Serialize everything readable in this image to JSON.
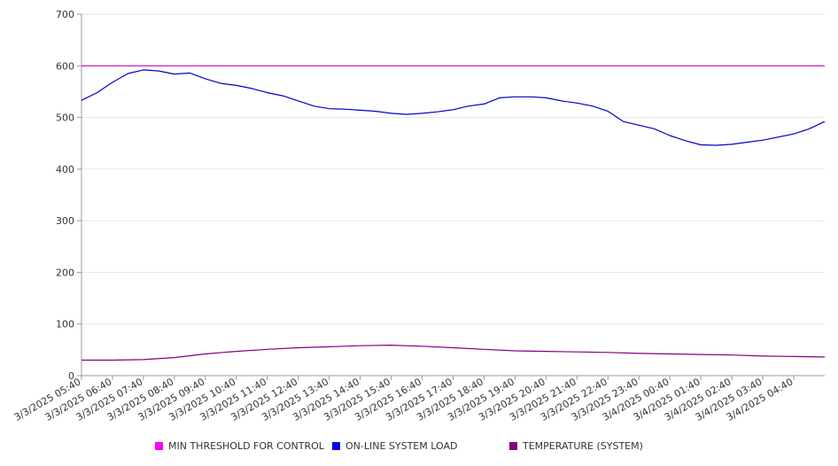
{
  "chart_data": {
    "type": "line",
    "title": "",
    "xlabel": "",
    "ylabel": "",
    "ylim": [
      0,
      700
    ],
    "yticks": [
      "0",
      "100",
      "200",
      "300",
      "400",
      "500",
      "600",
      "700"
    ],
    "xlim": [
      "3/3/2025 05:40",
      "3/4/2025 05:40"
    ],
    "xtick_labels": [
      "3/3/2025 05:40",
      "3/3/2025 06:40",
      "3/3/2025 07:40",
      "3/3/2025 08:40",
      "3/3/2025 09:40",
      "3/3/2025 10:40",
      "3/3/2025 11:40",
      "3/3/2025 12:40",
      "3/3/2025 13:40",
      "3/3/2025 14:40",
      "3/3/2025 15:40",
      "3/3/2025 16:40",
      "3/3/2025 17:40",
      "3/3/2025 18:40",
      "3/3/2025 19:40",
      "3/3/2025 20:40",
      "3/3/2025 21:40",
      "3/3/2025 22:40",
      "3/3/2025 23:40",
      "3/4/2025 00:40",
      "3/4/2025 01:40",
      "3/4/2025 02:40",
      "3/4/2025 03:40",
      "3/4/2025 04:40"
    ],
    "grid": true,
    "legend_position": "bottom",
    "series": [
      {
        "name": "MIN THRESHOLD FOR CONTROL",
        "color": "#cc00cc",
        "x": [
          "3/3/2025 05:40",
          "3/4/2025 05:40"
        ],
        "values": [
          600,
          600
        ]
      },
      {
        "name": "ON-LINE SYSTEM LOAD",
        "color": "#0000cc",
        "x": [
          "3/3/2025 05:40",
          "3/3/2025 06:10",
          "3/3/2025 06:40",
          "3/3/2025 07:10",
          "3/3/2025 07:40",
          "3/3/2025 08:10",
          "3/3/2025 08:40",
          "3/3/2025 09:10",
          "3/3/2025 09:40",
          "3/3/2025 10:10",
          "3/3/2025 10:40",
          "3/3/2025 11:10",
          "3/3/2025 11:40",
          "3/3/2025 12:10",
          "3/3/2025 12:40",
          "3/3/2025 13:10",
          "3/3/2025 13:40",
          "3/3/2025 14:10",
          "3/3/2025 14:40",
          "3/3/2025 15:10",
          "3/3/2025 15:40",
          "3/3/2025 16:10",
          "3/3/2025 16:40",
          "3/3/2025 17:10",
          "3/3/2025 17:40",
          "3/3/2025 18:10",
          "3/3/2025 18:40",
          "3/3/2025 19:10",
          "3/3/2025 19:40",
          "3/3/2025 20:10",
          "3/3/2025 20:40",
          "3/3/2025 21:10",
          "3/3/2025 21:40",
          "3/3/2025 22:10",
          "3/3/2025 22:40",
          "3/3/2025 23:10",
          "3/3/2025 23:40",
          "3/4/2025 00:10",
          "3/4/2025 00:40",
          "3/4/2025 01:10",
          "3/4/2025 01:40",
          "3/4/2025 02:10",
          "3/4/2025 02:40",
          "3/4/2025 03:10",
          "3/4/2025 03:40",
          "3/4/2025 04:10",
          "3/4/2025 04:40",
          "3/4/2025 05:10",
          "3/4/2025 05:40"
        ],
        "values": [
          533,
          548,
          568,
          585,
          592,
          590,
          584,
          586,
          575,
          566,
          562,
          556,
          548,
          542,
          532,
          522,
          517,
          516,
          514,
          512,
          508,
          506,
          508,
          511,
          515,
          522,
          526,
          538,
          540,
          540,
          538,
          532,
          528,
          522,
          512,
          492,
          485,
          478,
          465,
          455,
          447,
          446,
          448,
          452,
          456,
          462,
          468,
          478,
          492
        ]
      },
      {
        "name": "TEMPERATURE (SYSTEM)",
        "color": "#800080",
        "x": [
          "3/3/2025 05:40",
          "3/3/2025 06:40",
          "3/3/2025 07:40",
          "3/3/2025 08:40",
          "3/3/2025 09:40",
          "3/3/2025 10:40",
          "3/3/2025 11:40",
          "3/3/2025 12:40",
          "3/3/2025 13:40",
          "3/3/2025 14:40",
          "3/3/2025 15:40",
          "3/3/2025 16:40",
          "3/3/2025 17:40",
          "3/3/2025 18:40",
          "3/3/2025 19:40",
          "3/3/2025 20:40",
          "3/3/2025 21:40",
          "3/3/2025 22:40",
          "3/3/2025 23:40",
          "3/4/2025 00:40",
          "3/4/2025 01:40",
          "3/4/2025 02:40",
          "3/4/2025 03:40",
          "3/4/2025 04:40",
          "3/4/2025 05:40"
        ],
        "values": [
          30,
          30,
          31,
          35,
          42,
          47,
          51,
          54,
          56,
          58,
          59,
          57,
          54,
          51,
          48,
          47,
          46,
          45,
          43,
          42,
          41,
          40,
          38,
          37,
          36
        ]
      }
    ]
  }
}
